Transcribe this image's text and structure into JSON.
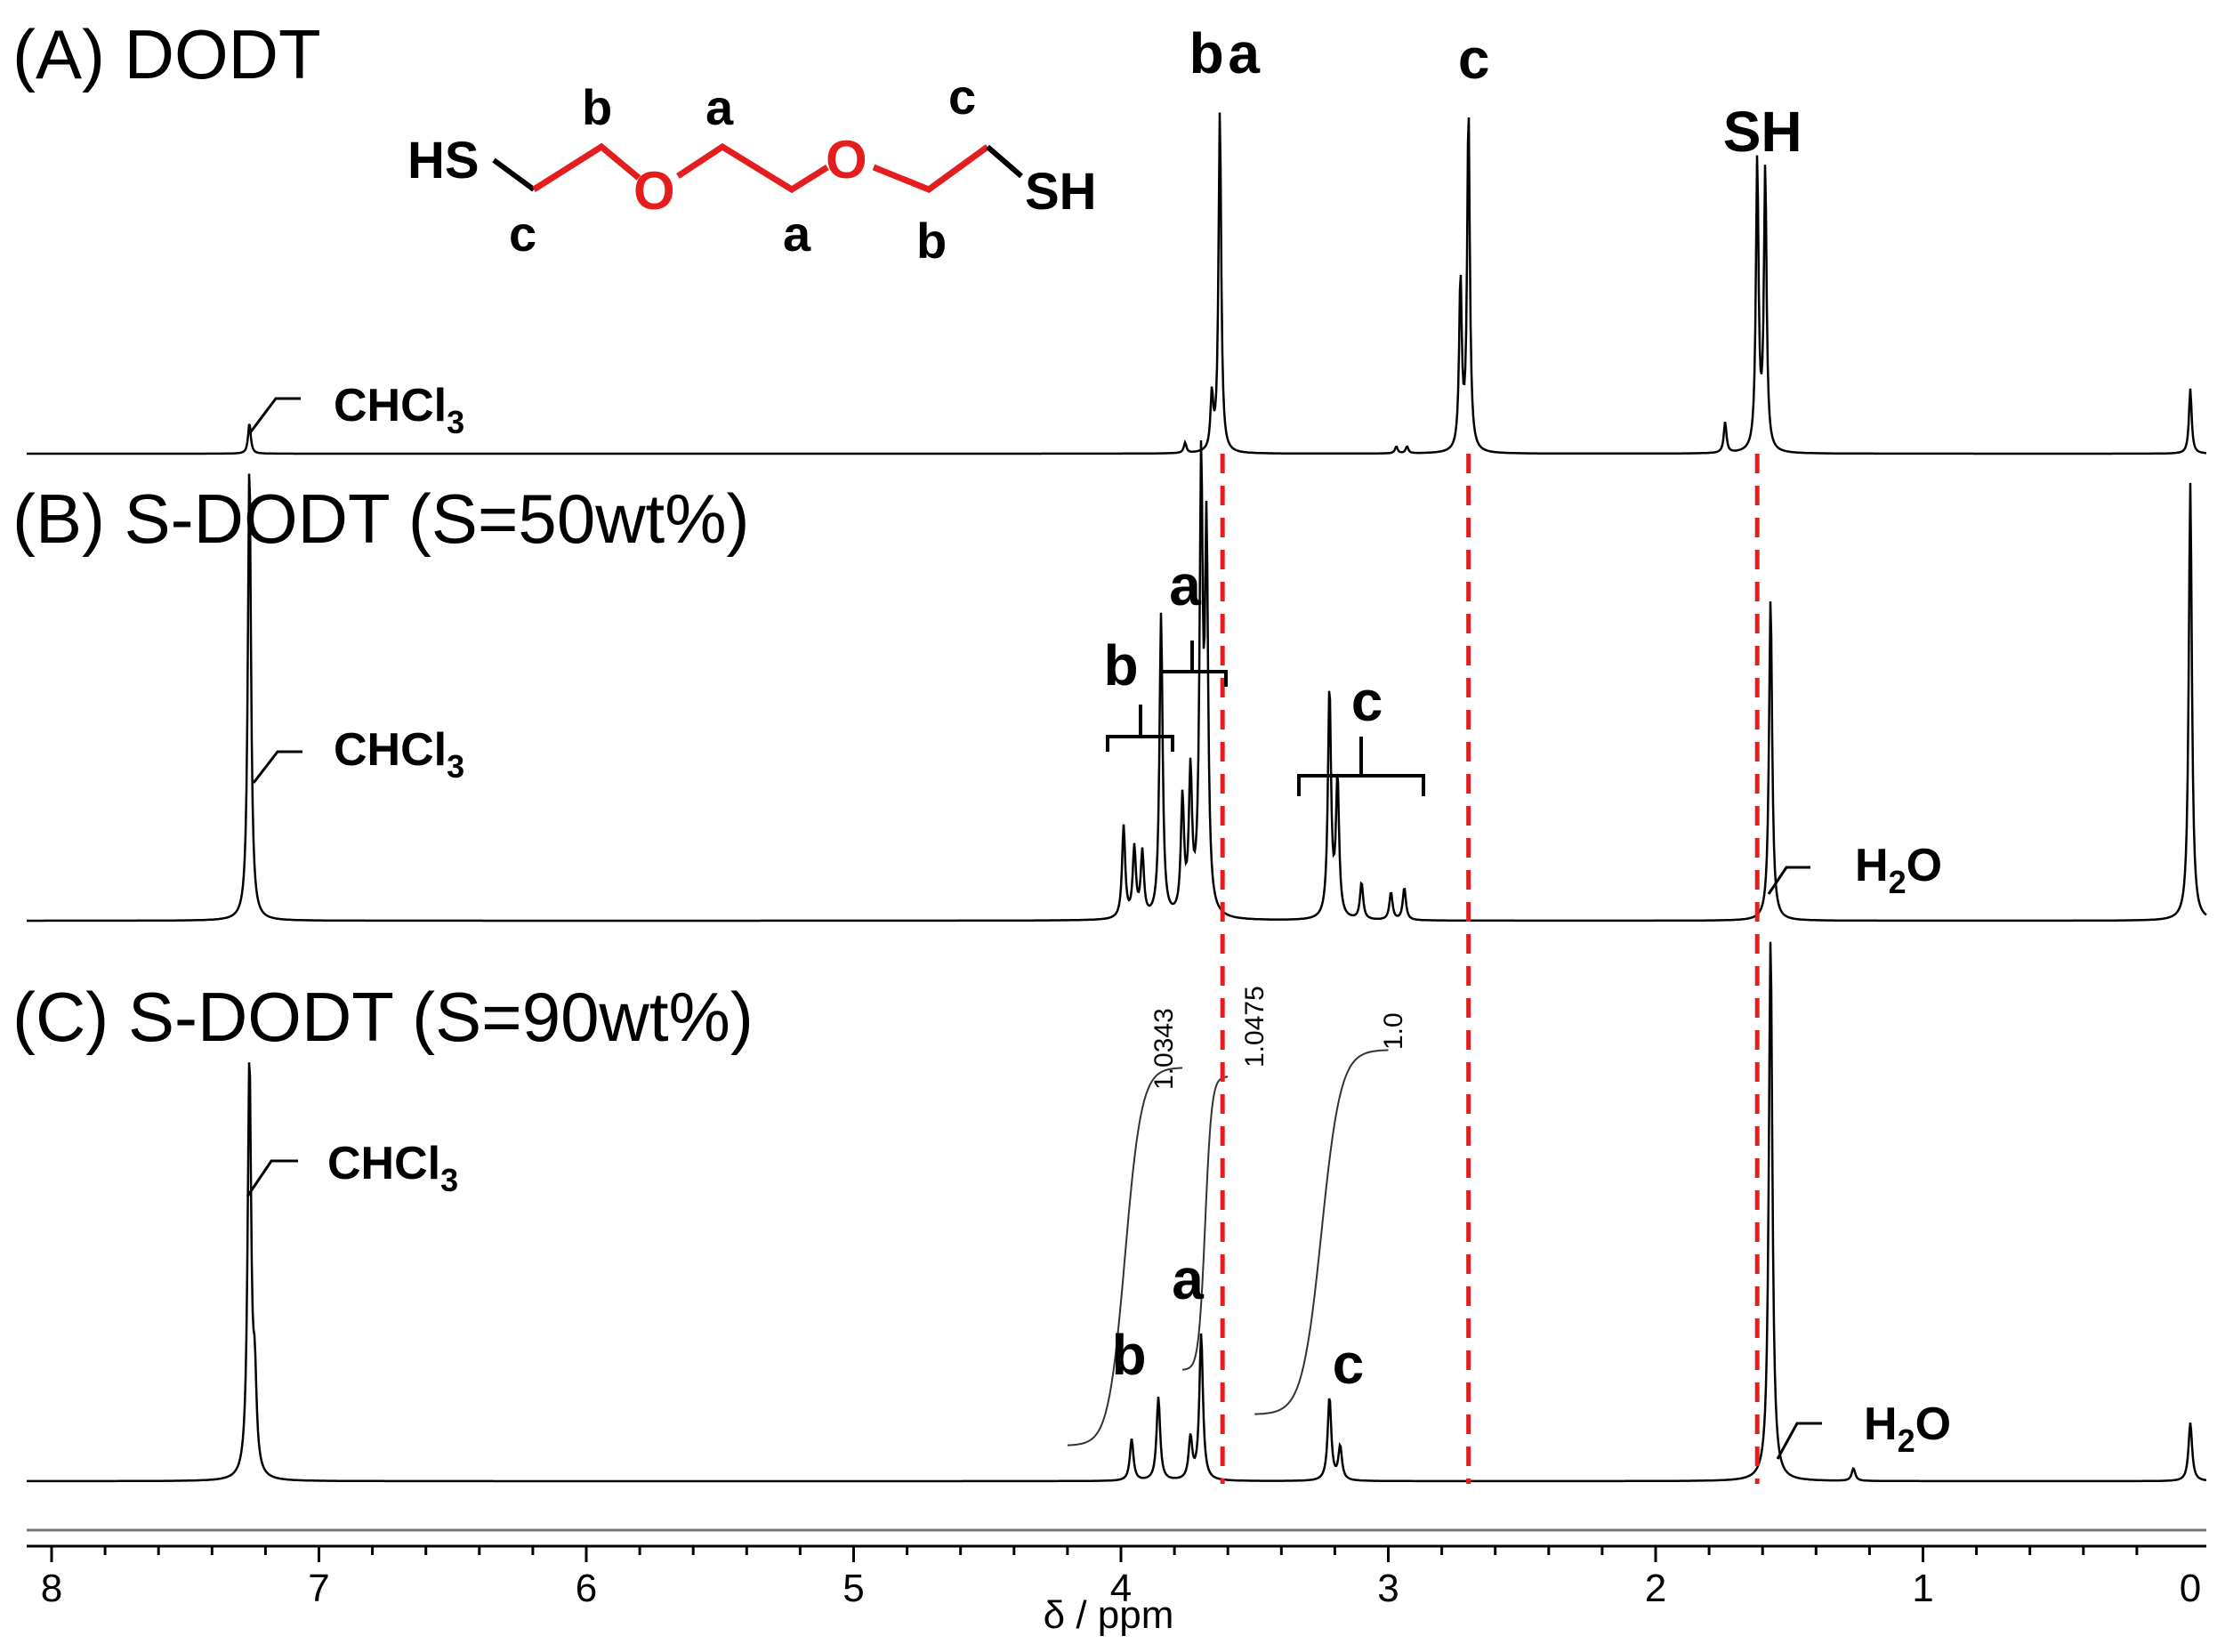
{
  "chart_data": {
    "type": "line",
    "xlabel": "δ / ppm",
    "xlim": [
      8.1,
      -0.05
    ],
    "x_reversed": true,
    "x_ticks": [
      8,
      7,
      6,
      5,
      4,
      3,
      2,
      1,
      0
    ],
    "grid": false,
    "legend": "none",
    "reference_lines_ppm": [
      3.62,
      2.7,
      1.62
    ],
    "reference_line_color": "#e41e1e",
    "structure": {
      "left_group": "HS",
      "right_group": "SH",
      "oxygen": "O",
      "backbone_color": "#e41e1e",
      "upper_letters": [
        "b",
        "a",
        "c"
      ],
      "lower_letters": [
        "c",
        "a",
        "b"
      ]
    },
    "spectra": [
      {
        "label": "(A) DODT",
        "peaks": [
          {
            "ppm": 7.26,
            "height": 0.09
          },
          {
            "ppm": 3.76,
            "height": 0.03
          },
          {
            "ppm": 3.66,
            "height": 0.16
          },
          {
            "ppm": 3.63,
            "height": 1.0
          },
          {
            "ppm": 2.97,
            "height": 0.02
          },
          {
            "ppm": 2.93,
            "height": 0.02
          },
          {
            "ppm": 2.73,
            "height": 0.5
          },
          {
            "ppm": 2.7,
            "height": 1.0
          },
          {
            "ppm": 1.74,
            "height": 0.09
          },
          {
            "ppm": 1.62,
            "height": 0.85
          },
          {
            "ppm": 1.59,
            "height": 0.82
          },
          {
            "ppm": 0.0,
            "height": 0.19
          }
        ],
        "peak_labels": [
          {
            "text": "b",
            "ppm": 3.68
          },
          {
            "text": "a",
            "ppm": 3.54
          },
          {
            "text": "c",
            "ppm": 2.68
          },
          {
            "text": "SH",
            "ppm": 1.6
          }
        ],
        "solvent_labels": [
          "CHCl3"
        ]
      },
      {
        "label": "(B) S-DODT (S=50wt%)",
        "peaks": [
          {
            "ppm": 7.26,
            "height": 1.0
          },
          {
            "ppm": 3.99,
            "height": 0.2
          },
          {
            "ppm": 3.95,
            "height": 0.15
          },
          {
            "ppm": 3.92,
            "height": 0.14
          },
          {
            "ppm": 3.85,
            "height": 0.66
          },
          {
            "ppm": 3.77,
            "height": 0.25
          },
          {
            "ppm": 3.74,
            "height": 0.3
          },
          {
            "ppm": 3.7,
            "height": 0.95
          },
          {
            "ppm": 3.68,
            "height": 0.8
          },
          {
            "ppm": 3.22,
            "height": 0.5
          },
          {
            "ppm": 3.19,
            "height": 0.3
          },
          {
            "ppm": 3.1,
            "height": 0.08
          },
          {
            "ppm": 2.99,
            "height": 0.06
          },
          {
            "ppm": 2.94,
            "height": 0.07
          },
          {
            "ppm": 1.57,
            "height": 0.7
          },
          {
            "ppm": 0.0,
            "height": 0.95
          }
        ],
        "peak_labels": [
          {
            "text": "b",
            "ppm": 4.0
          },
          {
            "text": "a",
            "ppm": 3.76
          },
          {
            "text": "c",
            "ppm": 3.08
          }
        ],
        "solvent_labels": [
          "CHCl3",
          "H2O"
        ]
      },
      {
        "label": "(C) S-DODT (S=90wt%)",
        "peaks": [
          {
            "ppm": 7.26,
            "height": 1.0
          },
          {
            "ppm": 7.24,
            "height": 0.2
          },
          {
            "ppm": 3.96,
            "height": 0.1
          },
          {
            "ppm": 3.86,
            "height": 0.2
          },
          {
            "ppm": 3.74,
            "height": 0.1
          },
          {
            "ppm": 3.7,
            "height": 0.35
          },
          {
            "ppm": 3.22,
            "height": 0.2
          },
          {
            "ppm": 3.18,
            "height": 0.08
          },
          {
            "ppm": 1.57,
            "height": 1.3
          },
          {
            "ppm": 1.26,
            "height": 0.03
          },
          {
            "ppm": 0.0,
            "height": 0.14
          }
        ],
        "peak_labels": [
          {
            "text": "b",
            "ppm": 3.97
          },
          {
            "text": "a",
            "ppm": 3.75
          },
          {
            "text": "c",
            "ppm": 3.15
          }
        ],
        "integrals": [
          {
            "label": "1.0343",
            "from_ppm": 4.2,
            "to_ppm": 3.77
          },
          {
            "label": "1.0475",
            "from_ppm": 3.77,
            "to_ppm": 3.6
          },
          {
            "label": "1.0",
            "from_ppm": 3.5,
            "to_ppm": 3.0
          }
        ],
        "solvent_labels": [
          "CHCl3",
          "H2O"
        ]
      }
    ]
  }
}
